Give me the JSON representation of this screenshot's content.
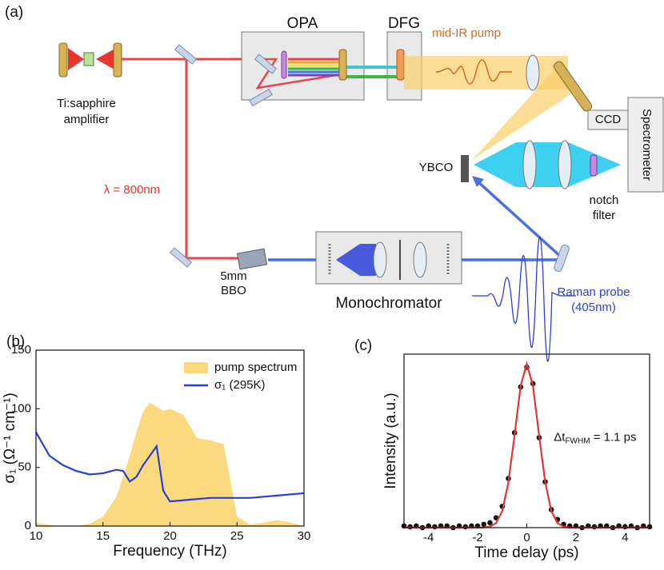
{
  "diagram": {
    "panel": "(a)",
    "labels": {
      "opa": "OPA",
      "dfg": "DFG",
      "pump": "mid-IR pump",
      "laser1": "Ti:sapphire",
      "laser2": "amplifier",
      "wavelength": "λ = 800nm",
      "ccd": "CCD",
      "spectrometer": "Spectrometer",
      "sample": "YBCO",
      "notch1": "notch",
      "notch2": "filter",
      "bbo1": "5mm",
      "bbo2": "BBO",
      "mono": "Monochromator",
      "probe1": "Raman probe",
      "probe2": "(405nm)"
    }
  },
  "chart_data": [
    {
      "type": "area",
      "panel": "(b)",
      "xlabel": "Frequency (THz)",
      "ylabel": "σ₁ (Ω⁻¹ cm⁻¹)",
      "x": [
        10,
        11,
        12,
        13,
        14,
        15,
        16,
        16.5,
        17,
        17.5,
        18,
        18.5,
        19,
        19.5,
        20,
        21,
        22,
        23,
        24,
        25,
        26,
        27,
        28,
        29,
        30
      ],
      "series": [
        {
          "name": "pump spectrum",
          "kind": "area",
          "color": "#fbd97f",
          "values": [
            3,
            1,
            0,
            0,
            2,
            8,
            25,
            42,
            60,
            80,
            98,
            105,
            102,
            98,
            100,
            95,
            75,
            73,
            70,
            8,
            1,
            3,
            5,
            3,
            0
          ]
        },
        {
          "name": "σ₁ (295K)",
          "kind": "line",
          "color": "#2b3fd6",
          "values": [
            80,
            60,
            52,
            47,
            44,
            45,
            48,
            47,
            38,
            42,
            52,
            60,
            68,
            30,
            21,
            22,
            23,
            24,
            24,
            24,
            24,
            25,
            26,
            27,
            28
          ]
        }
      ],
      "xlim": [
        10,
        30
      ],
      "xticks": [
        10,
        15,
        20,
        25,
        30
      ],
      "ylim": [
        0,
        150
      ],
      "yticks": [
        0,
        50,
        100,
        150
      ],
      "legend": "upper right"
    },
    {
      "type": "scatter",
      "panel": "(c)",
      "xlabel": "Time delay (ps)",
      "ylabel": "Intensity (a.u.)",
      "annotation": [
        "Δt",
        "FWHM",
        " = 1.1 ps"
      ],
      "x": [
        -5,
        -4.75,
        -4.5,
        -4.25,
        -4,
        -3.75,
        -3.5,
        -3.25,
        -3,
        -2.75,
        -2.5,
        -2.25,
        -2,
        -1.75,
        -1.5,
        -1.25,
        -1,
        -0.75,
        -0.5,
        -0.25,
        0,
        0.25,
        0.5,
        0.75,
        1,
        1.25,
        1.5,
        1.75,
        2,
        2.25,
        2.5,
        2.75,
        3,
        3.25,
        3.5,
        3.75,
        4,
        4.25,
        4.5,
        4.75,
        5
      ],
      "series": [
        {
          "kind": "scatter",
          "color": "#111111",
          "values": [
            0.01,
            0.005,
            0.01,
            0,
            0.01,
            0.005,
            0.01,
            0.01,
            0,
            0.01,
            0.005,
            0.01,
            0.01,
            0.02,
            0.03,
            0.06,
            0.13,
            0.3,
            0.58,
            0.86,
            0.98,
            0.88,
            0.55,
            0.28,
            0.11,
            0.05,
            0.02,
            0.01,
            0.01,
            0,
            0.01,
            0.005,
            0.01,
            0.01,
            0,
            0.01,
            0.005,
            0.01,
            0,
            0.01,
            0.005
          ]
        },
        {
          "kind": "line",
          "color": "#e8342e",
          "values": [
            0,
            0,
            0,
            0,
            0,
            0,
            0,
            0,
            0,
            0,
            0,
            0,
            0,
            0.001,
            0.006,
            0.028,
            0.101,
            0.276,
            0.564,
            0.867,
            1,
            0.867,
            0.564,
            0.276,
            0.101,
            0.028,
            0.006,
            0.001,
            0,
            0,
            0,
            0,
            0,
            0,
            0,
            0,
            0,
            0,
            0,
            0,
            0
          ]
        }
      ],
      "xlim": [
        -5,
        5
      ],
      "xticks": [
        -4,
        -2,
        0,
        2,
        4
      ],
      "ylim": [
        0,
        1.06
      ]
    }
  ]
}
